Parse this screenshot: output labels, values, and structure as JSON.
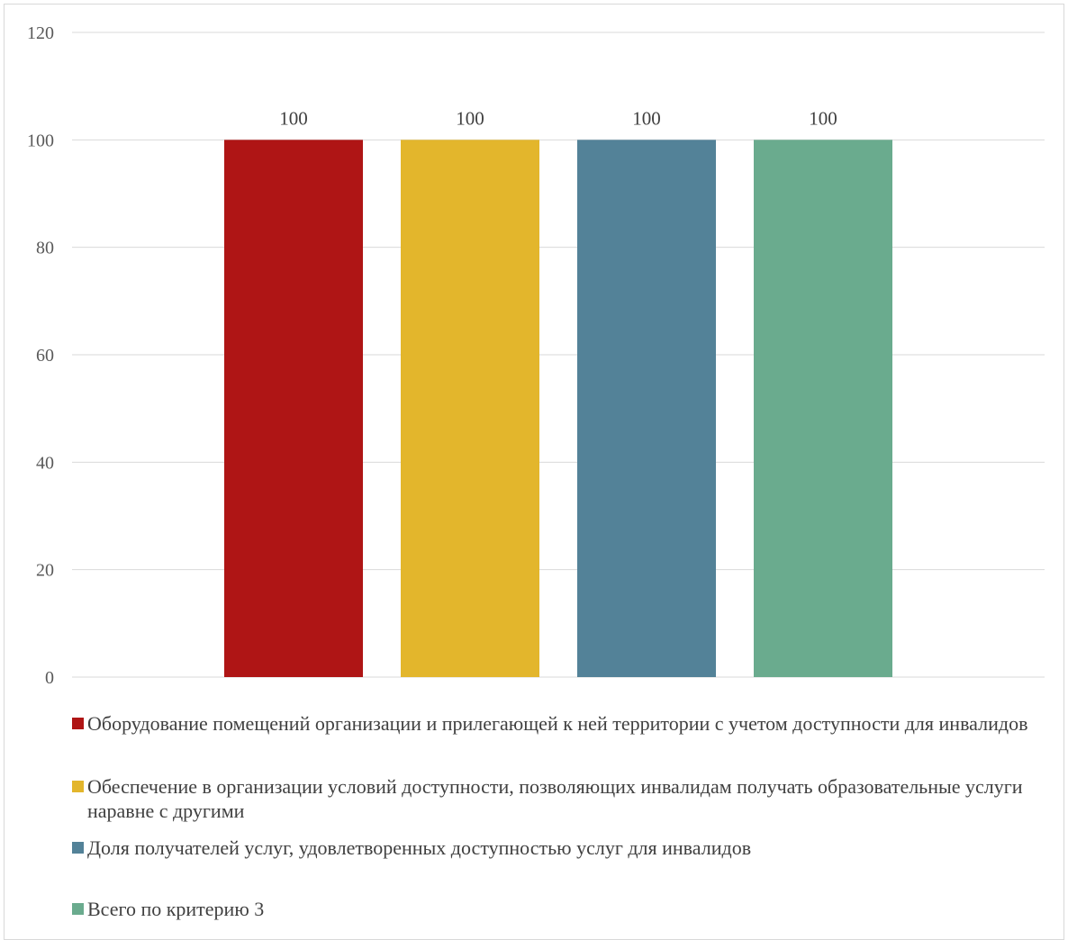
{
  "chart_data": {
    "type": "bar",
    "series": [
      {
        "name": "Оборудование помещений организации и прилегающей к ней территории с учетом доступности для инвалидов",
        "value": 100,
        "color": "#af1515"
      },
      {
        "name": "Обеспечение в организации условий доступности, позволяющих инвалидам получать образовательные услуги наравне с другими",
        "value": 100,
        "color": "#e3b62c"
      },
      {
        "name": "Доля получателей услуг, удовлетворенных доступностью услуг для инвалидов",
        "value": 100,
        "color": "#538298"
      },
      {
        "name": "Всего по критерию 3",
        "value": 100,
        "color": "#6aab8e"
      }
    ],
    "ylim": [
      0,
      120
    ],
    "yticks": [
      0,
      20,
      40,
      60,
      80,
      100,
      120
    ],
    "data_labels": [
      "100",
      "100",
      "100",
      "100"
    ],
    "grid": true,
    "legend": "bottom"
  }
}
